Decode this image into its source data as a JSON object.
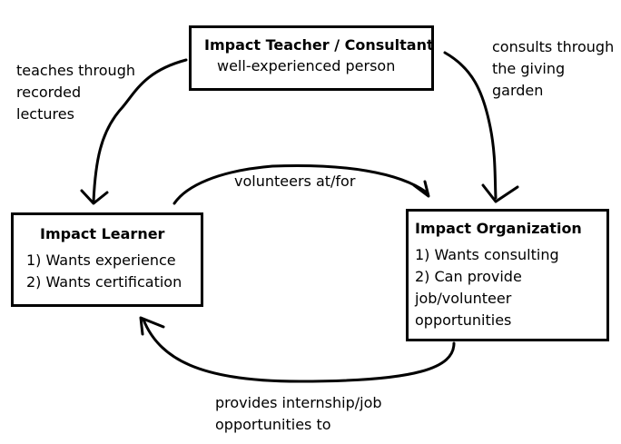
{
  "teacher_box": {
    "title": "Impact Teacher / Consultant",
    "subtitle": "well-experienced person"
  },
  "learner_box": {
    "title": "Impact Learner",
    "items": [
      "1) Wants experience",
      "2) Wants certification"
    ]
  },
  "organization_box": {
    "title": "Impact Organization",
    "items": [
      "1) Wants consulting",
      "2) Can provide",
      "job/volunteer",
      "opportunities"
    ]
  },
  "edges": {
    "teacher_to_learner": [
      "teaches through",
      "recorded",
      "lectures"
    ],
    "teacher_to_organization": [
      "consults through",
      "the giving",
      "garden"
    ],
    "learner_to_organization": "volunteers at/for",
    "organization_to_learner": [
      "provides internship/job",
      "opportunities to"
    ]
  },
  "colors": {
    "stroke": "#000000",
    "background": "#ffffff"
  }
}
